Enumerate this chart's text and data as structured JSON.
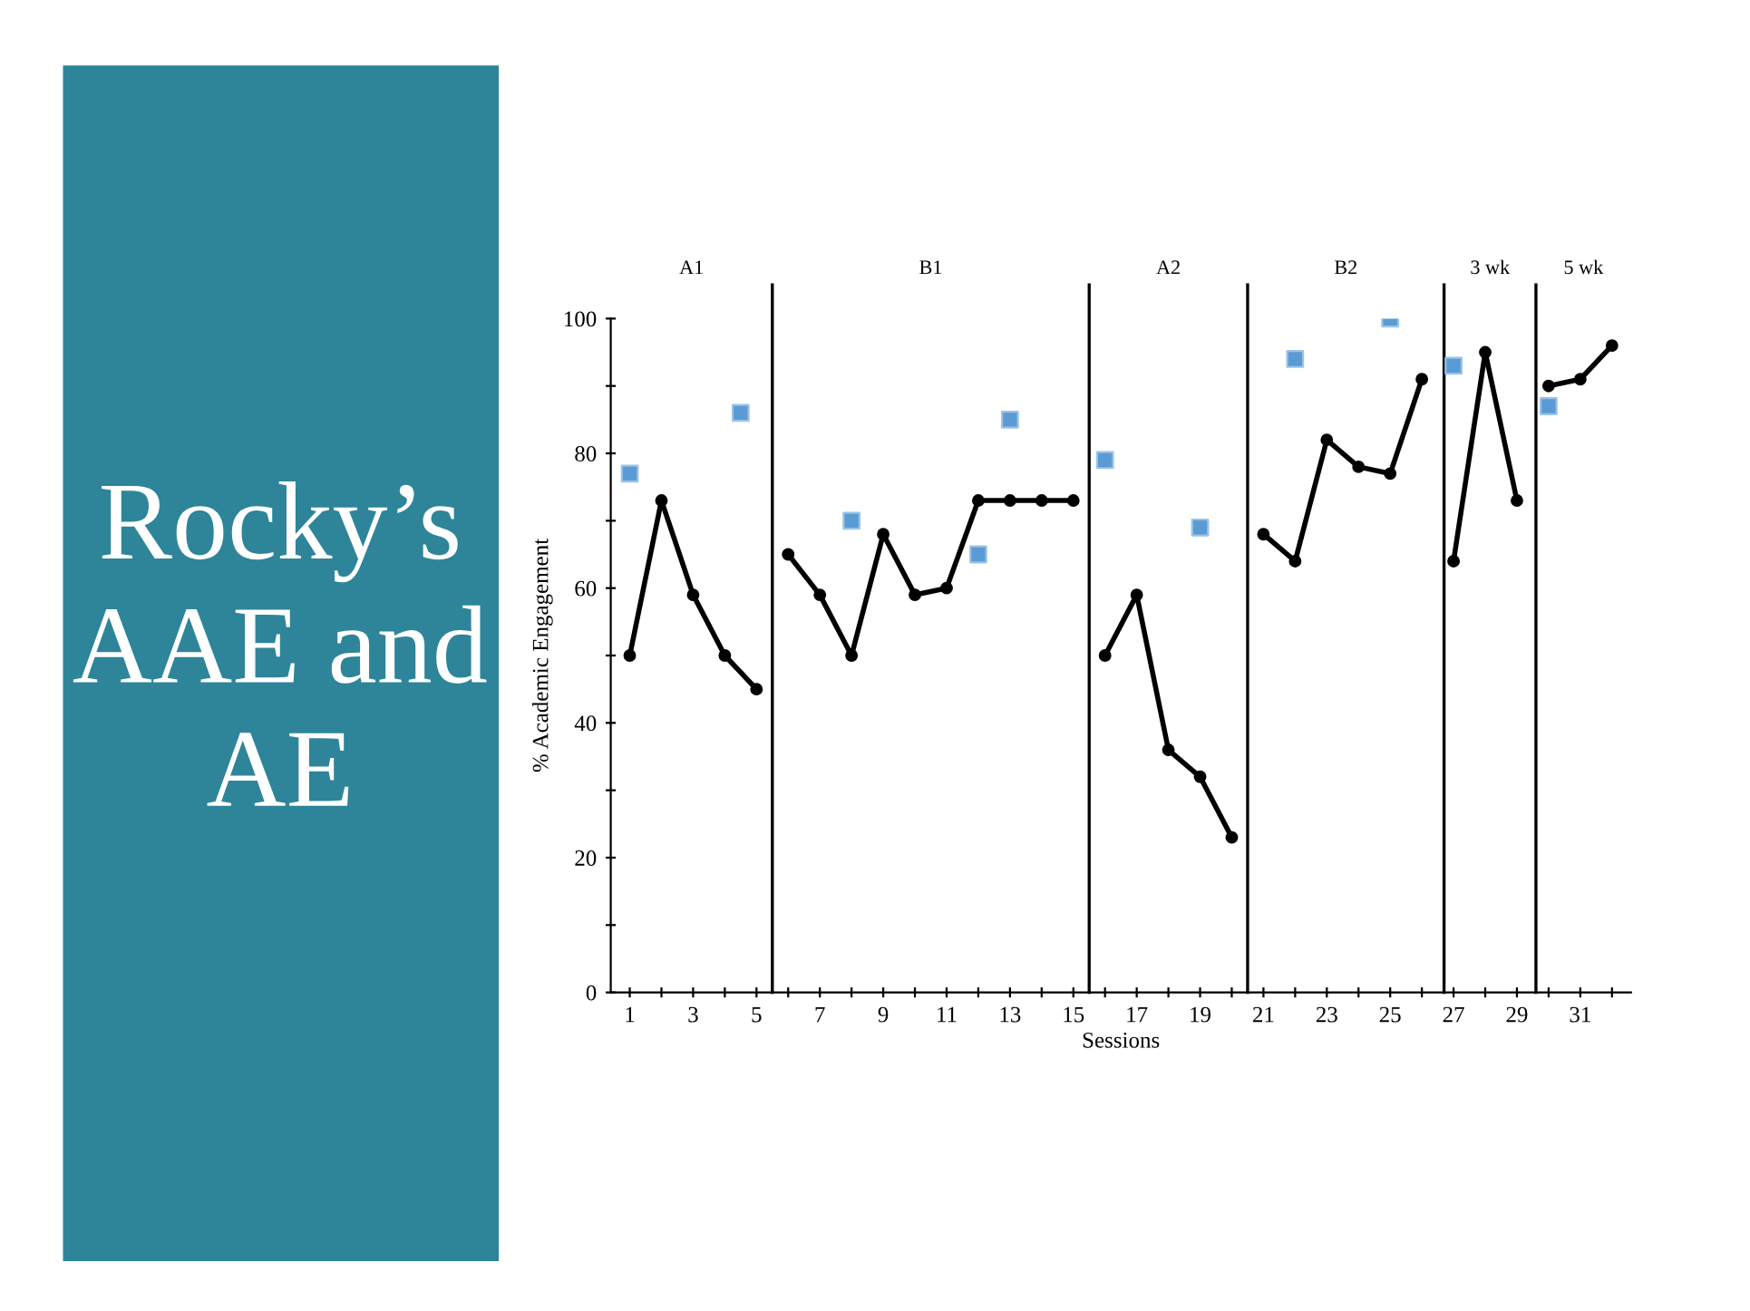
{
  "chart_data": {
    "type": "line",
    "title": "Rocky’s AAE and AE",
    "xlabel": "Sessions",
    "ylabel": "% Academic Engagement",
    "xlim": [
      0.4,
      32.6
    ],
    "ylim": [
      0,
      100
    ],
    "xticks": [
      1,
      {
        "value": 2,
        "label": null
      },
      3,
      {
        "value": 4,
        "label": null
      },
      5,
      {
        "value": 6,
        "label": null
      },
      7,
      {
        "value": 8,
        "label": null
      },
      9,
      {
        "value": 10,
        "label": null
      },
      11,
      {
        "value": 12,
        "label": null
      },
      13,
      {
        "value": 14,
        "label": null
      },
      15,
      {
        "value": 16,
        "label": null
      },
      17,
      {
        "value": 18,
        "label": null
      },
      19,
      {
        "value": 20,
        "label": null
      },
      21,
      {
        "value": 22,
        "label": null
      },
      23,
      {
        "value": 24,
        "label": null
      },
      25,
      {
        "value": 26,
        "label": null
      },
      27,
      {
        "value": 28,
        "label": null
      },
      29,
      {
        "value": 30,
        "label": null
      },
      31,
      {
        "value": 32,
        "label": null
      }
    ],
    "yticks": [
      0,
      {
        "value": 10,
        "label": null
      },
      20,
      {
        "value": 30,
        "label": null
      },
      40,
      {
        "value": 50,
        "label": null
      },
      60,
      {
        "value": 70,
        "label": null
      },
      80,
      {
        "value": 90,
        "label": null
      },
      100
    ],
    "grid": false,
    "legend": false,
    "series": [
      {
        "color": "#000000",
        "marker": "circle",
        "x": [
          1,
          2,
          3,
          4,
          5
        ],
        "values": [
          50,
          73,
          59,
          50,
          45
        ]
      },
      {
        "color": "#000000",
        "marker": "circle",
        "x": [
          6,
          7,
          8,
          9,
          10,
          11,
          12,
          13,
          14,
          15
        ],
        "values": [
          65,
          59,
          50,
          68,
          59,
          60,
          73,
          73,
          73,
          73
        ]
      },
      {
        "color": "#000000",
        "marker": "circle",
        "x": [
          16,
          17,
          18,
          19,
          20
        ],
        "values": [
          50,
          59,
          36,
          32,
          23
        ]
      },
      {
        "color": "#000000",
        "marker": "circle",
        "x": [
          21,
          22,
          23,
          24,
          25,
          26
        ],
        "values": [
          68,
          64,
          82,
          78,
          77,
          91
        ]
      },
      {
        "color": "#000000",
        "marker": "circle",
        "x": [
          27,
          28,
          29
        ],
        "values": [
          64,
          95,
          73
        ]
      },
      {
        "color": "#000000",
        "marker": "circle",
        "x": [
          30,
          31,
          32
        ],
        "values": [
          90,
          91,
          96
        ]
      },
      {
        "type": "scatter",
        "color": "#5b9bd5",
        "marker": "square",
        "x": [
          1,
          4.5,
          8,
          12,
          13,
          16,
          19,
          22,
          25,
          27,
          30
        ],
        "values": [
          77,
          86,
          70,
          65,
          85,
          79,
          69,
          94,
          100,
          93,
          87
        ]
      }
    ],
    "ref_lines": [
      {
        "axis": "x",
        "value": 5.5,
        "color": "#000000"
      },
      {
        "axis": "x",
        "value": 15.5,
        "color": "#000000"
      },
      {
        "axis": "x",
        "value": 20.5,
        "color": "#000000"
      },
      {
        "axis": "x",
        "value": 26.7,
        "color": "#000000"
      },
      {
        "axis": "x",
        "value": 29.6,
        "color": "#000000"
      }
    ],
    "annotations": [
      "A1",
      "B1",
      "A2",
      "B2",
      "3 wk",
      "5 wk"
    ]
  }
}
